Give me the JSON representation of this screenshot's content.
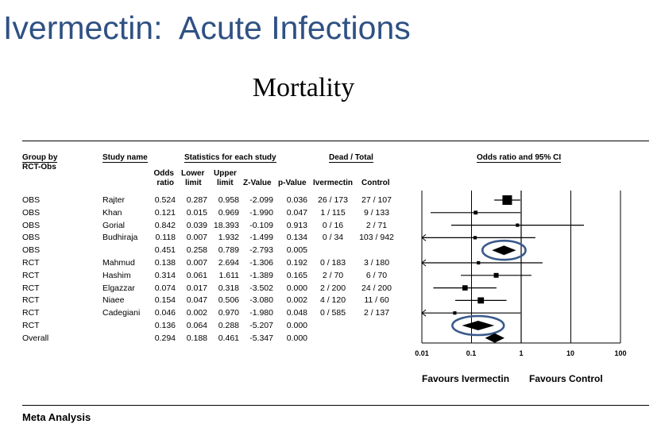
{
  "slide_title": "Ivermectin:  Acute Infections",
  "chart_title": "Mortality",
  "headers": {
    "group_by": "Group by",
    "group_sub": "RCT-Obs",
    "study_name": "Study name",
    "stats": "Statistics for each study",
    "dead_total": "Dead / Total",
    "odds_ci": "Odds ratio and 95% CI",
    "odds_l1": "Odds",
    "odds_l2": "ratio",
    "lower_l1": "Lower",
    "lower_l2": "limit",
    "upper_l1": "Upper",
    "upper_l2": "limit",
    "zvalue": "Z-Value",
    "pvalue": "p-Value",
    "ivermectin": "Ivermectin",
    "control": "Control"
  },
  "rows": [
    {
      "group": "OBS",
      "study": "Rajter",
      "or": "0.524",
      "lo": "0.287",
      "hi": "0.958",
      "z": "-2.099",
      "p": "0.036",
      "iv": "26 / 173",
      "ct": "27 / 107"
    },
    {
      "group": "OBS",
      "study": "Khan",
      "or": "0.121",
      "lo": "0.015",
      "hi": "0.969",
      "z": "-1.990",
      "p": "0.047",
      "iv": "1 / 115",
      "ct": "9 / 133"
    },
    {
      "group": "OBS",
      "study": "Gorial",
      "or": "0.842",
      "lo": "0.039",
      "hi": "18.393",
      "z": "-0.109",
      "p": "0.913",
      "iv": "0 / 16",
      "ct": "2 / 71"
    },
    {
      "group": "OBS",
      "study": "Budhiraja",
      "or": "0.118",
      "lo": "0.007",
      "hi": "1.932",
      "z": "-1.499",
      "p": "0.134",
      "iv": "0 / 34",
      "ct": "103 / 942"
    },
    {
      "group": "OBS",
      "study": "",
      "or": "0.451",
      "lo": "0.258",
      "hi": "0.789",
      "z": "-2.793",
      "p": "0.005",
      "iv": "",
      "ct": ""
    },
    {
      "group": "RCT",
      "study": "Mahmud",
      "or": "0.138",
      "lo": "0.007",
      "hi": "2.694",
      "z": "-1.306",
      "p": "0.192",
      "iv": "0 / 183",
      "ct": "3 / 180"
    },
    {
      "group": "RCT",
      "study": "Hashim",
      "or": "0.314",
      "lo": "0.061",
      "hi": "1.611",
      "z": "-1.389",
      "p": "0.165",
      "iv": "2 / 70",
      "ct": "6 / 70"
    },
    {
      "group": "RCT",
      "study": "Elgazzar",
      "or": "0.074",
      "lo": "0.017",
      "hi": "0.318",
      "z": "-3.502",
      "p": "0.000",
      "iv": "2 / 200",
      "ct": "24 / 200"
    },
    {
      "group": "RCT",
      "study": "Niaee",
      "or": "0.154",
      "lo": "0.047",
      "hi": "0.506",
      "z": "-3.080",
      "p": "0.002",
      "iv": "4 / 120",
      "ct": "11 / 60"
    },
    {
      "group": "RCT",
      "study": "Cadegiani",
      "or": "0.046",
      "lo": "0.002",
      "hi": "0.970",
      "z": "-1.980",
      "p": "0.048",
      "iv": "0 / 585",
      "ct": "2 / 137"
    },
    {
      "group": "RCT",
      "study": "",
      "or": "0.136",
      "lo": "0.064",
      "hi": "0.288",
      "z": "-5.207",
      "p": "0.000",
      "iv": "",
      "ct": ""
    },
    {
      "group": "Overall",
      "study": "",
      "or": "0.294",
      "lo": "0.188",
      "hi": "0.461",
      "z": "-5.347",
      "p": "0.000",
      "iv": "",
      "ct": ""
    }
  ],
  "chart_data": {
    "type": "forest",
    "title": "Mortality",
    "xlabel": "Odds ratio and 95% CI",
    "x_scale": "log",
    "xlim": [
      0.01,
      100
    ],
    "ticks": [
      0.01,
      0.1,
      1,
      10,
      100
    ],
    "tick_labels": [
      "0.01",
      "0.1",
      "1",
      "10",
      "100"
    ],
    "reference_line": 1,
    "favours_left": "Favours Ivermectin",
    "favours_right": "Favours Control",
    "studies": [
      {
        "name": "Rajter",
        "group": "OBS",
        "or": 0.524,
        "lo": 0.287,
        "hi": 0.958,
        "kind": "study",
        "weight": 3
      },
      {
        "name": "Khan",
        "group": "OBS",
        "or": 0.121,
        "lo": 0.015,
        "hi": 0.969,
        "kind": "study",
        "weight": 0.6
      },
      {
        "name": "Gorial",
        "group": "OBS",
        "or": 0.842,
        "lo": 0.039,
        "hi": 18.393,
        "kind": "study",
        "weight": 0.4
      },
      {
        "name": "Budhiraja",
        "group": "OBS",
        "or": 0.118,
        "lo": 0.007,
        "hi": 1.932,
        "kind": "study",
        "weight": 0.4
      },
      {
        "name": "OBS",
        "group": "OBS",
        "or": 0.451,
        "lo": 0.258,
        "hi": 0.789,
        "kind": "summary",
        "highlighted": true
      },
      {
        "name": "Mahmud",
        "group": "RCT",
        "or": 0.138,
        "lo": 0.007,
        "hi": 2.694,
        "kind": "study",
        "weight": 0.4
      },
      {
        "name": "Hashim",
        "group": "RCT",
        "or": 0.314,
        "lo": 0.061,
        "hi": 1.611,
        "kind": "study",
        "weight": 1
      },
      {
        "name": "Elgazzar",
        "group": "RCT",
        "or": 0.074,
        "lo": 0.017,
        "hi": 0.318,
        "kind": "study",
        "weight": 1.2
      },
      {
        "name": "Niaee",
        "group": "RCT",
        "or": 0.154,
        "lo": 0.047,
        "hi": 0.506,
        "kind": "study",
        "weight": 1.6
      },
      {
        "name": "Cadegiani",
        "group": "RCT",
        "or": 0.046,
        "lo": 0.002,
        "hi": 0.97,
        "kind": "study",
        "weight": 0.4
      },
      {
        "name": "RCT",
        "group": "RCT",
        "or": 0.136,
        "lo": 0.064,
        "hi": 0.288,
        "kind": "summary",
        "highlighted": true
      },
      {
        "name": "Overall",
        "group": "Overall",
        "or": 0.294,
        "lo": 0.188,
        "hi": 0.461,
        "kind": "summary",
        "highlighted": false
      }
    ]
  },
  "colors": {
    "title": "#2f5183",
    "highlight": "#3a5a8c"
  },
  "footer": "Meta Analysis"
}
